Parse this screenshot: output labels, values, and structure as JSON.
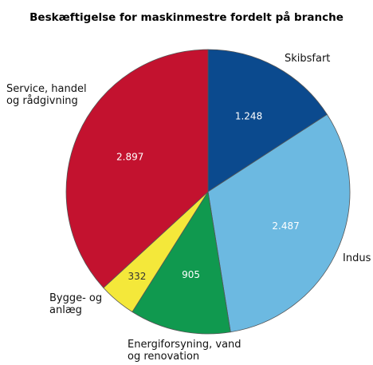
{
  "chart_data": {
    "type": "pie",
    "title": "Beskæftigelse for maskinmestre fordelt på branche",
    "categories": [
      "Skibsfart",
      "Indus",
      "Energiforsyning, vand og renovation",
      "Bygge- og anlæg",
      "Service, handel og rådgivning"
    ],
    "values": [
      1248,
      2487,
      905,
      332,
      2897
    ],
    "value_labels": [
      "1.248",
      "2.487",
      "905",
      "332",
      "2.897"
    ],
    "colors": [
      "#0b4a8e",
      "#6cb9e1",
      "#10994f",
      "#f4e83a",
      "#c3122f"
    ]
  }
}
